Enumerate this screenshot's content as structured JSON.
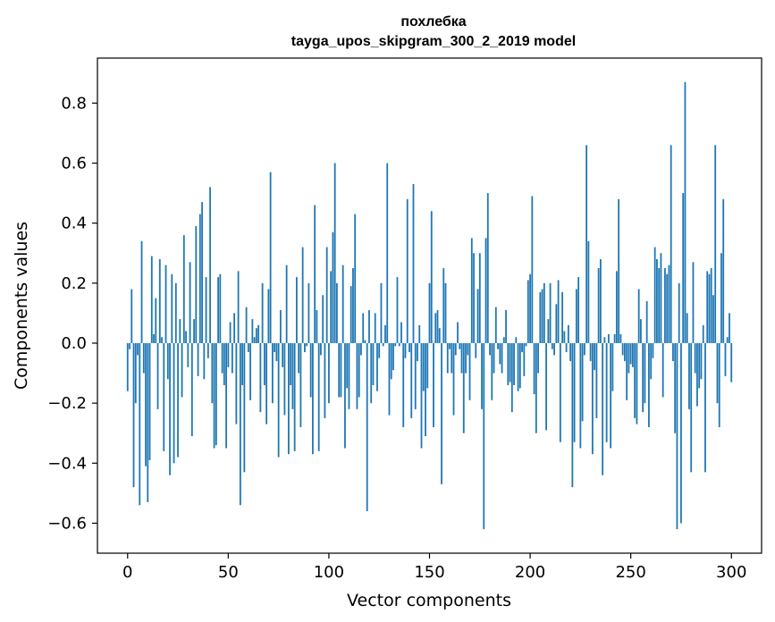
{
  "chart_data": {
    "type": "bar",
    "title": "похлебка",
    "subtitle": "tayga_upos_skipgram_300_2_2019 model",
    "xlabel": "Vector components",
    "ylabel": "Components values",
    "xlim": [
      -15,
      315
    ],
    "ylim": [
      -0.7,
      0.95
    ],
    "xticks": [
      0,
      50,
      100,
      150,
      200,
      250,
      300
    ],
    "yticks": [
      -0.6,
      -0.4,
      -0.2,
      0.0,
      0.2,
      0.4,
      0.6,
      0.8
    ],
    "ytick_labels": [
      "−0.6",
      "−0.4",
      "−0.2",
      "0.0",
      "0.2",
      "0.4",
      "0.6",
      "0.8"
    ],
    "grid": false,
    "bar_color": "#1f77b4",
    "values": [
      -0.16,
      -0.02,
      0.18,
      -0.48,
      -0.2,
      -0.04,
      -0.54,
      0.34,
      -0.1,
      -0.41,
      -0.53,
      -0.39,
      0.29,
      0.03,
      0.15,
      -0.22,
      0.28,
      0.02,
      -0.36,
      0.26,
      -0.12,
      -0.44,
      0.23,
      -0.4,
      0.2,
      -0.38,
      0.08,
      -0.18,
      0.36,
      0.04,
      -0.08,
      0.27,
      -0.31,
      0.08,
      0.39,
      -0.11,
      0.43,
      0.47,
      -0.12,
      0.22,
      -0.05,
      0.52,
      -0.2,
      -0.35,
      -0.34,
      0.22,
      0.23,
      -0.1,
      -0.14,
      -0.35,
      -0.08,
      0.07,
      -0.1,
      0.1,
      -0.27,
      0.24,
      -0.54,
      -0.14,
      -0.43,
      0.12,
      -0.03,
      -0.19,
      0.08,
      0.02,
      0.05,
      0.06,
      -0.23,
      0.2,
      -0.14,
      -0.27,
      0.18,
      0.57,
      -0.2,
      -0.03,
      -0.06,
      -0.38,
      0.11,
      -0.08,
      -0.24,
      0.26,
      -0.37,
      -0.14,
      -0.22,
      -0.36,
      0.22,
      -0.1,
      -0.28,
      0.32,
      -0.03,
      -0.01,
      0.2,
      -0.18,
      -0.37,
      0.46,
      0.11,
      -0.36,
      -0.04,
      0.16,
      -0.25,
      0.32,
      -0.2,
      0.24,
      0.37,
      0.6,
      0.2,
      -0.18,
      -0.18,
      0.26,
      -0.35,
      -0.15,
      -0.22,
      0.19,
      0.25,
      0.43,
      -0.22,
      -0.18,
      -0.04,
      0.1,
      0.01,
      -0.56,
      0.11,
      -0.2,
      -0.14,
      0.1,
      -0.16,
      -0.05,
      0.2,
      -0.01,
      0.06,
      0.6,
      -0.24,
      -0.12,
      -0.09,
      -0.01,
      0.22,
      -0.01,
      0.07,
      -0.28,
      -0.05,
      0.48,
      -0.03,
      -0.25,
      0.53,
      -0.22,
      -0.06,
      0.06,
      -0.35,
      -0.16,
      -0.31,
      -0.15,
      0.2,
      0.44,
      -0.28,
      0.1,
      0.11,
      0.05,
      -0.47,
      0.25,
      0.2,
      -0.1,
      -0.02,
      -0.1,
      -0.24,
      -0.04,
      0.07,
      -0.02,
      -0.1,
      -0.3,
      -0.1,
      -0.04,
      -0.19,
      0.35,
      0.3,
      -0.05,
      0.18,
      0.3,
      -0.22,
      -0.62,
      0.35,
      0.5,
      -0.04,
      -0.19,
      -0.1,
      0.12,
      -0.02,
      -0.07,
      -0.1,
      0.02,
      0.11,
      -0.14,
      -0.13,
      -0.23,
      -0.14,
      0.02,
      -0.16,
      -0.15,
      -0.03,
      -0.11,
      -0.01,
      0.21,
      0.23,
      0.49,
      -0.17,
      -0.3,
      -0.1,
      0.17,
      0.18,
      0.2,
      -0.29,
      0.08,
      0.2,
      -0.02,
      -0.04,
      0.13,
      0.21,
      -0.33,
      0.17,
      0.04,
      -0.03,
      0.06,
      -0.06,
      -0.48,
      -0.33,
      0.18,
      0.22,
      -0.35,
      -0.26,
      -0.04,
      0.66,
      0.34,
      -0.06,
      -0.37,
      -0.09,
      -0.25,
      0.25,
      0.28,
      -0.44,
      0.02,
      -0.33,
      0.03,
      -0.35,
      -0.16,
      0.03,
      0.24,
      0.48,
      0.03,
      -0.04,
      -0.06,
      -0.19,
      -0.1,
      -0.07,
      -0.08,
      -0.25,
      -0.27,
      0.18,
      0.08,
      -0.23,
      -0.2,
      0.14,
      -0.28,
      -0.12,
      -0.05,
      0.32,
      0.28,
      0.25,
      0.3,
      -0.18,
      0.25,
      0.23,
      0.26,
      0.66,
      -0.06,
      -0.3,
      -0.62,
      0.2,
      -0.6,
      0.5,
      0.87,
      0.1,
      -0.22,
      -0.43,
      0.27,
      -0.1,
      -0.21,
      -0.15,
      -0.12,
      0.06,
      -0.43,
      0.24,
      0.23,
      0.25,
      0.16,
      0.66,
      -0.2,
      -0.28,
      0.3,
      0.48,
      -0.11,
      0.02,
      0.1,
      -0.13
    ]
  }
}
